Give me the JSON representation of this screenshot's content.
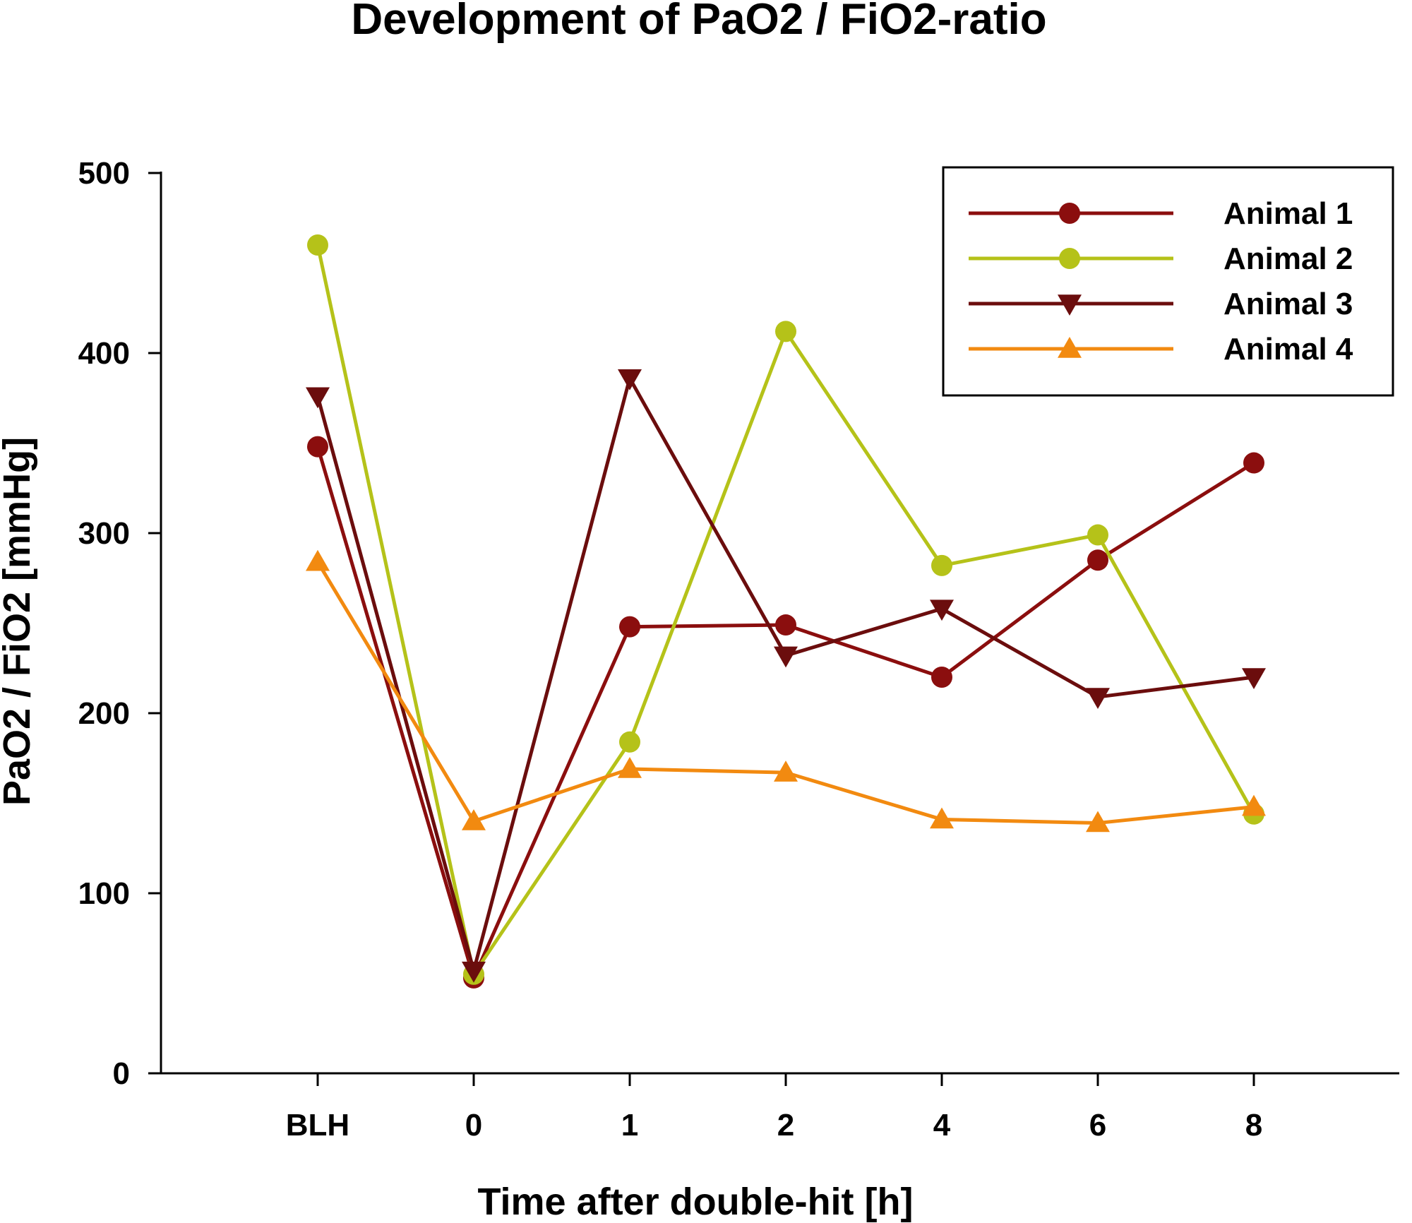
{
  "chart_data": {
    "type": "line",
    "title": "Development of PaO2 / FiO2-ratio",
    "xlabel": "Time after double-hit [h]",
    "ylabel": "PaO2 / FiO2 [mmHg]",
    "categories": [
      "BLH",
      "0",
      "1",
      "2",
      "4",
      "6",
      "8"
    ],
    "ylim": [
      0,
      500
    ],
    "yticks": [
      0,
      100,
      200,
      300,
      400,
      500
    ],
    "ytick_labels": [
      "0",
      "100",
      "200",
      "300",
      "400",
      "500"
    ],
    "grid": false,
    "legend_position": "top-right",
    "series": [
      {
        "name": "Animal 1",
        "marker": "circle",
        "color": "#8b0e0e",
        "values": [
          348,
          53,
          248,
          249,
          220,
          285,
          339
        ]
      },
      {
        "name": "Animal 2",
        "marker": "circle",
        "color": "#b5c219",
        "values": [
          460,
          55,
          184,
          412,
          282,
          299,
          144
        ]
      },
      {
        "name": "Animal 3",
        "marker": "triangle-down",
        "color": "#6b0d0d",
        "values": [
          376,
          57,
          386,
          232,
          258,
          209,
          220
        ]
      },
      {
        "name": "Animal 4",
        "marker": "triangle-up",
        "color": "#f28a10",
        "values": [
          284,
          140,
          169,
          167,
          141,
          139,
          148
        ]
      }
    ]
  }
}
